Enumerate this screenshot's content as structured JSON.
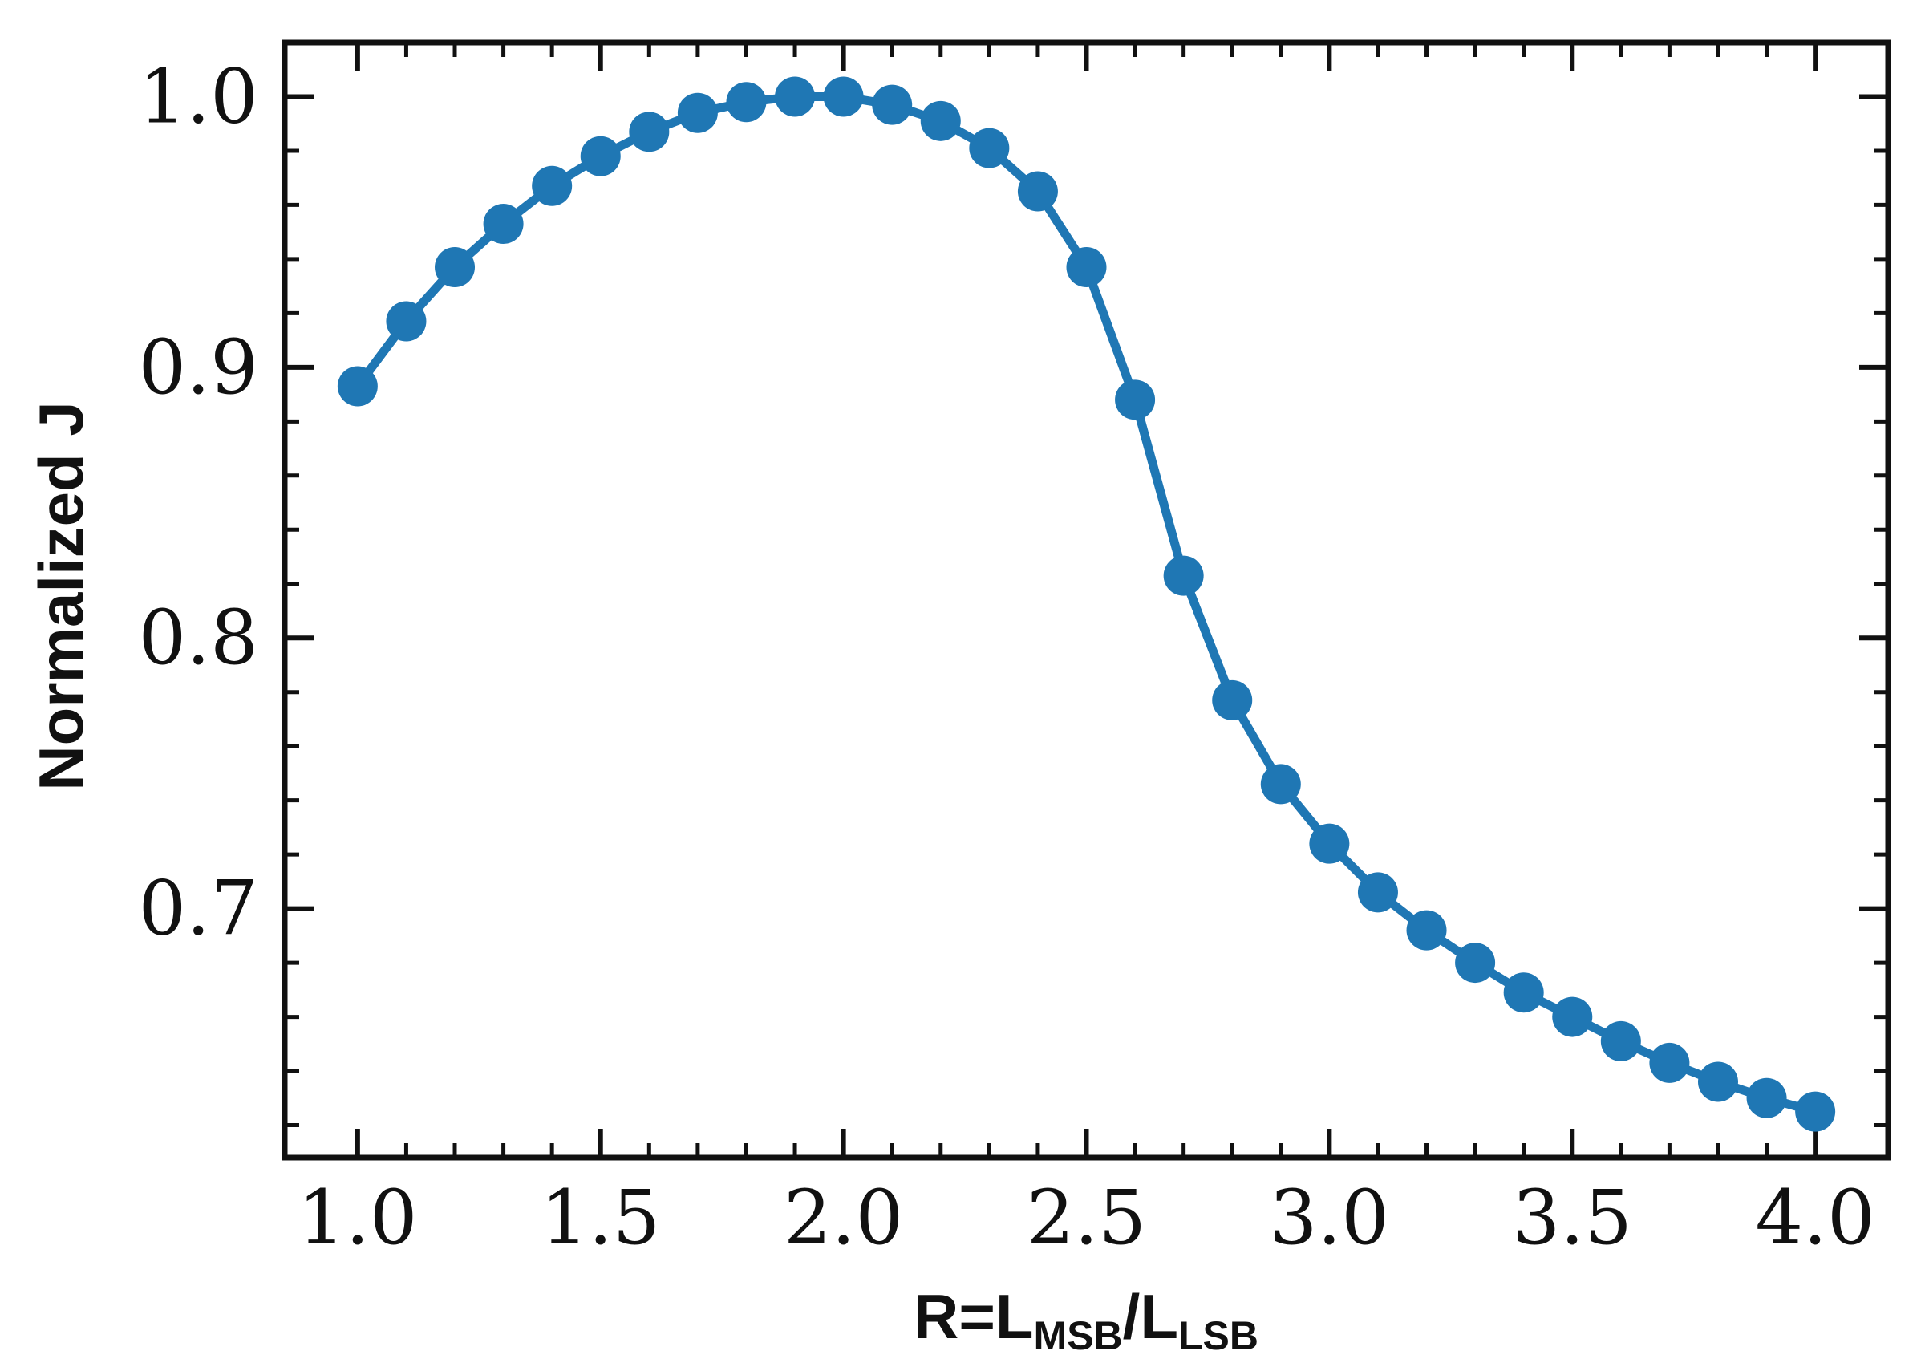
{
  "chart_data": {
    "type": "line",
    "xlabel": {
      "main": "R=L",
      "sub1": "MSB",
      "mid": "/L",
      "sub2": "LSB"
    },
    "ylabel": "Normalized J",
    "xlim": [
      0.85,
      4.15
    ],
    "ylim": [
      0.608,
      1.02
    ],
    "xticks": [
      1.0,
      1.5,
      2.0,
      2.5,
      3.0,
      3.5,
      4.0
    ],
    "xtick_labels": [
      "1.0",
      "1.5",
      "2.0",
      "2.5",
      "3.0",
      "3.5",
      "4.0"
    ],
    "yticks": [
      0.7,
      0.8,
      0.9,
      1.0
    ],
    "ytick_labels": [
      "0.7",
      "0.8",
      "0.9",
      "1.0"
    ],
    "x_minor_step": 0.1,
    "y_minor_step": 0.02,
    "grid": false,
    "series": [
      {
        "color": "#1f77b4",
        "marker": "circle",
        "x": [
          1.0,
          1.1,
          1.2,
          1.3,
          1.4,
          1.5,
          1.6,
          1.7,
          1.8,
          1.9,
          2.0,
          2.1,
          2.2,
          2.3,
          2.4,
          2.5,
          2.6,
          2.7,
          2.8,
          2.9,
          3.0,
          3.1,
          3.2,
          3.3,
          3.4,
          3.5,
          3.6,
          3.7,
          3.8,
          3.9,
          4.0
        ],
        "y": [
          0.893,
          0.917,
          0.937,
          0.953,
          0.967,
          0.978,
          0.987,
          0.994,
          0.998,
          1.0,
          1.0,
          0.997,
          0.991,
          0.981,
          0.965,
          0.937,
          0.888,
          0.823,
          0.777,
          0.746,
          0.724,
          0.706,
          0.692,
          0.68,
          0.669,
          0.66,
          0.651,
          0.643,
          0.636,
          0.63,
          0.625
        ]
      }
    ]
  }
}
